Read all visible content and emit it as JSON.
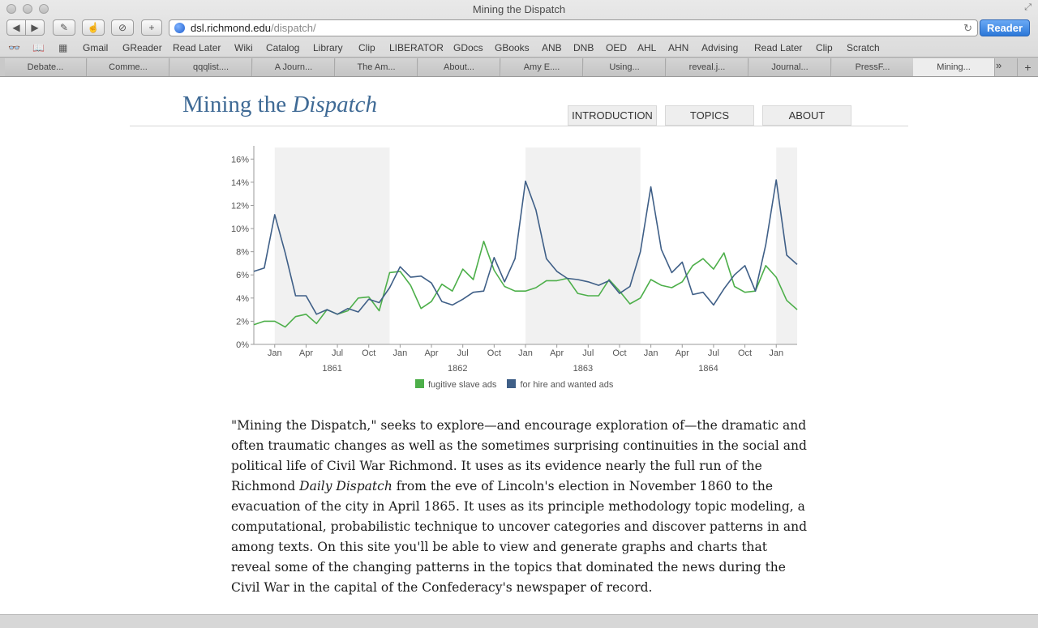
{
  "window": {
    "title": "Mining the Dispatch"
  },
  "toolbar": {
    "url_host": "dsl.richmond.edu",
    "url_path": "/dispatch/",
    "reader_label": "Reader"
  },
  "bookmarks": [
    "Gmail",
    "GReader",
    "Read Later",
    "Wiki",
    "Catalog",
    "Library",
    "Clip",
    "LIBERATOR",
    "GDocs",
    "GBooks",
    "ANB",
    "DNB",
    "OED",
    "AHL",
    "AHN",
    "Advising",
    "Read Later",
    "Clip",
    "Scratch"
  ],
  "tabs": [
    "Debate...",
    "Comme...",
    "qqqlist....",
    "A Journ...",
    "The Am...",
    "About...",
    "Amy E....",
    "Using...",
    "reveal.j...",
    "Journal...",
    "PressF...",
    "Mining..."
  ],
  "site": {
    "title_plain": "Mining the ",
    "title_italic": "Dispatch",
    "nav": [
      "INTRODUCTION",
      "TOPICS",
      "ABOUT"
    ]
  },
  "intro": {
    "p1": "\"Mining the Dispatch,\" seeks to explore—and encourage exploration of—the dramatic and often traumatic changes as well as the sometimes surprising continuities in the social and political life of Civil War Richmond. It uses as its evidence nearly the full run of the Richmond ",
    "p1_italic": "Daily Dispatch",
    "p2": " from the eve of Lincoln's election in November 1860 to the evacuation of the city in April 1865. It uses as its principle methodology topic modeling, a computational, probabilistic technique to uncover categories and discover patterns in and among texts. On this site you'll be able to view and generate graphs and charts that reveal some of the changing patterns in the topics that dominated the news during the Civil War in the capital of the Confederacy's newspaper of record."
  },
  "colors": {
    "green": "#4daf4a",
    "blue": "#3f5f87",
    "band": "#f1f1f1",
    "title": "#3f6a95"
  },
  "chart_data": {
    "type": "line",
    "x_start": "1860-11",
    "x_step": "month",
    "ylim": [
      0,
      17
    ],
    "y_ticks": [
      "0%",
      "2%",
      "4%",
      "6%",
      "8%",
      "10%",
      "12%",
      "14%",
      "16%"
    ],
    "x_tick_labels": [
      "Jan",
      "Apr",
      "Jul",
      "Oct",
      "Jan",
      "Apr",
      "Jul",
      "Oct",
      "Jan",
      "Apr",
      "Jul",
      "Oct",
      "Jan",
      "Apr",
      "Jul",
      "Oct",
      "Jan"
    ],
    "years": [
      "1861",
      "1862",
      "1863",
      "1864"
    ],
    "shaded_bands": [
      [
        "1861-01",
        "1861-12"
      ],
      [
        "1863-01",
        "1863-12"
      ],
      [
        "1865-01",
        "1865-04"
      ]
    ],
    "series": [
      {
        "name": "fugitive slave ads",
        "color": "#4daf4a",
        "values": [
          1.7,
          2.0,
          2.0,
          1.5,
          2.4,
          2.6,
          1.8,
          3.0,
          2.6,
          2.9,
          4.0,
          4.1,
          2.9,
          6.2,
          6.3,
          5.1,
          3.1,
          3.7,
          5.2,
          4.6,
          6.5,
          5.6,
          8.9,
          6.4,
          5.0,
          4.6,
          4.6,
          4.9,
          5.5,
          5.5,
          5.7,
          4.4,
          4.2,
          4.2,
          5.6,
          4.6,
          3.5,
          4.0,
          5.6,
          5.1,
          4.9,
          5.4,
          6.8,
          7.4,
          6.5,
          7.9,
          5.0,
          4.5,
          4.6,
          6.8,
          5.8,
          3.8,
          3.0
        ]
      },
      {
        "name": "for hire and wanted ads",
        "color": "#3f5f87",
        "values": [
          6.3,
          6.6,
          11.2,
          7.9,
          4.2,
          4.2,
          2.6,
          3.0,
          2.6,
          3.1,
          2.8,
          3.9,
          3.6,
          4.9,
          6.7,
          5.8,
          5.9,
          5.3,
          3.7,
          3.4,
          3.9,
          4.5,
          4.6,
          7.5,
          5.4,
          7.4,
          14.1,
          11.6,
          7.4,
          6.3,
          5.7,
          5.6,
          5.4,
          5.1,
          5.5,
          4.4,
          5.0,
          8.0,
          13.6,
          8.2,
          6.2,
          7.1,
          4.3,
          4.5,
          3.4,
          4.8,
          6.0,
          6.8,
          4.6,
          8.6,
          14.2,
          7.7,
          6.9
        ]
      }
    ]
  }
}
